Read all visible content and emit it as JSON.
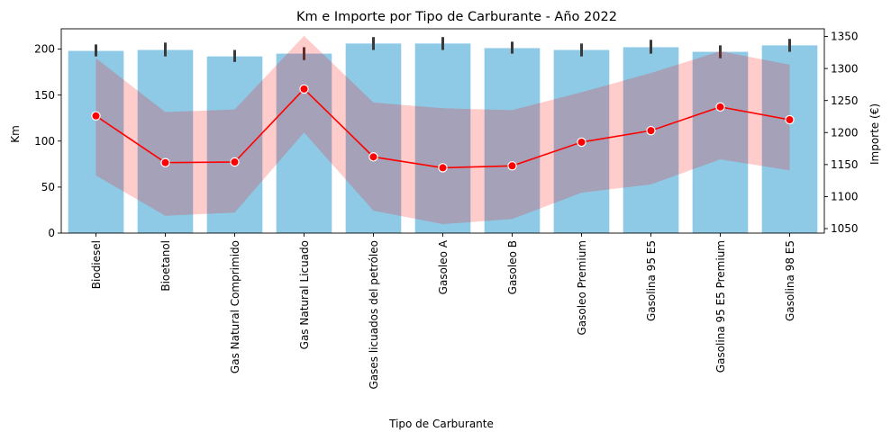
{
  "chart_data": {
    "type": "bar",
    "title": "Km e Importe por Tipo de Carburante - Año 2022",
    "xlabel": "Tipo de Carburante",
    "ylabel": "Km",
    "y2label": "Importe (€)",
    "categories": [
      "Biodiesel",
      "Bioetanol",
      "Gas Natural Comprimido",
      "Gas Natural Licuado",
      "Gases licuados del petróleo",
      "Gasoleo A",
      "Gasoleo B",
      "Gasoleo Premium",
      "Gasolina 95 E5",
      "Gasolina 95 E5 Premium",
      "Gasolina 98 E5"
    ],
    "ylim": [
      0,
      222
    ],
    "y_ticks": [
      0,
      50,
      100,
      150,
      200
    ],
    "y2lim": [
      1043,
      1362
    ],
    "y2_ticks": [
      1050,
      1100,
      1150,
      1200,
      1250,
      1300,
      1350
    ],
    "grid": false,
    "series": [
      {
        "name": "Km",
        "kind": "bar",
        "axis": "left",
        "color": "#8ecae6",
        "values": [
          198,
          199,
          192,
          195,
          206,
          206,
          201,
          199,
          202,
          197,
          204
        ],
        "ci_low": [
          192,
          192,
          186,
          188,
          199,
          199,
          195,
          192,
          195,
          190,
          197
        ],
        "ci_high": [
          205,
          207,
          199,
          202,
          213,
          213,
          208,
          206,
          210,
          204,
          211
        ]
      },
      {
        "name": "Importe (€)",
        "kind": "line",
        "axis": "right",
        "color": "#ff0000",
        "band_color": "#ff0000",
        "values": [
          1226,
          1153,
          1154,
          1268,
          1162,
          1145,
          1148,
          1185,
          1203,
          1240,
          1220
        ],
        "ci_low": [
          1133,
          1070,
          1075,
          1200,
          1078,
          1057,
          1065,
          1106,
          1119,
          1158,
          1141
        ],
        "ci_high": [
          1316,
          1232,
          1236,
          1351,
          1247,
          1238,
          1235,
          1263,
          1293,
          1327,
          1306
        ]
      }
    ]
  }
}
